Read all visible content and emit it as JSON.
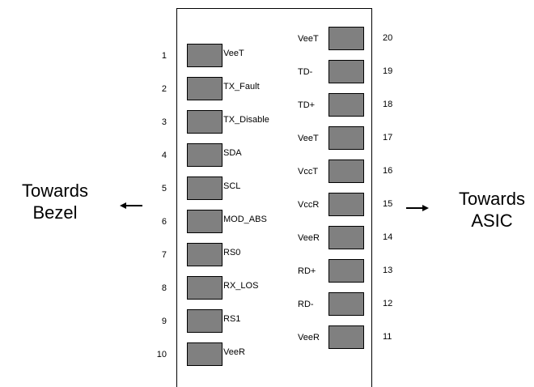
{
  "left_side": {
    "line1": "Towards",
    "line2": "Bezel"
  },
  "right_side": {
    "line1": "Towards",
    "line2": "ASIC"
  },
  "left_pins": [
    {
      "num": "1",
      "label": "VeeT"
    },
    {
      "num": "2",
      "label": "TX_Fault"
    },
    {
      "num": "3",
      "label": "TX_Disable"
    },
    {
      "num": "4",
      "label": "SDA"
    },
    {
      "num": "5",
      "label": "SCL"
    },
    {
      "num": "6",
      "label": "MOD_ABS"
    },
    {
      "num": "7",
      "label": "RS0"
    },
    {
      "num": "8",
      "label": "RX_LOS"
    },
    {
      "num": "9",
      "label": "RS1"
    },
    {
      "num": "10",
      "label": "VeeR"
    }
  ],
  "right_pins": [
    {
      "num": "20",
      "label": "VeeT"
    },
    {
      "num": "19",
      "label": "TD-"
    },
    {
      "num": "18",
      "label": "TD+"
    },
    {
      "num": "17",
      "label": "VeeT"
    },
    {
      "num": "16",
      "label": "VccT"
    },
    {
      "num": "15",
      "label": "VccR"
    },
    {
      "num": "14",
      "label": "VeeR"
    },
    {
      "num": "13",
      "label": "RD+"
    },
    {
      "num": "12",
      "label": "RD-"
    },
    {
      "num": "11",
      "label": "VeeR"
    }
  ],
  "colors": {
    "pad_fill": "#808080",
    "outline": "#000000"
  }
}
